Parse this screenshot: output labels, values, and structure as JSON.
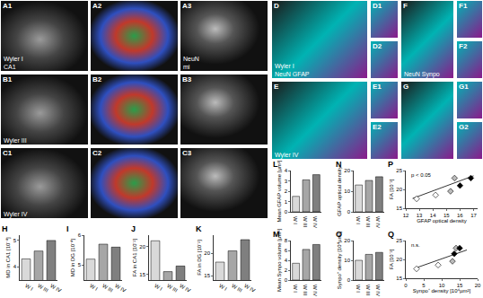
{
  "images": [
    {
      "label": "A1",
      "texts": [
        "Wyler I",
        "CA1"
      ]
    },
    {
      "label": "A2",
      "texts": []
    },
    {
      "label": "A3",
      "texts": [
        "NeuN",
        "mi"
      ]
    },
    {
      "label": "B1",
      "texts": [
        "Wyler III"
      ]
    },
    {
      "label": "B2",
      "texts": []
    },
    {
      "label": "B3",
      "texts": []
    },
    {
      "label": "C1",
      "texts": [
        "Wyler IV"
      ]
    },
    {
      "label": "C2",
      "texts": []
    },
    {
      "label": "C3",
      "texts": []
    },
    {
      "label": "D",
      "texts": [
        "Wyler I",
        "NeuN GFAP"
      ]
    },
    {
      "label": "D1",
      "texts": []
    },
    {
      "label": "D2",
      "texts": []
    },
    {
      "label": "E",
      "texts": [
        "Wyler IV"
      ]
    },
    {
      "label": "E1",
      "texts": []
    },
    {
      "label": "E2",
      "texts": []
    },
    {
      "label": "F",
      "texts": [
        "NeuN Synpo"
      ]
    },
    {
      "label": "F1",
      "texts": []
    },
    {
      "label": "F2",
      "texts": []
    },
    {
      "label": "G",
      "texts": []
    },
    {
      "label": "G1",
      "texts": []
    },
    {
      "label": "G2",
      "texts": []
    }
  ],
  "chart_data": [
    {
      "panel": "H",
      "type": "bar",
      "y_label": "MD in CA1 [10⁻⁴]",
      "categories": [
        "W I",
        "W III",
        "W IV"
      ],
      "values": [
        4.3,
        4.6,
        5.0
      ],
      "colors": [
        "#d9d9d9",
        "#a6a6a6",
        "#7f7f7f"
      ],
      "ylim": [
        3.5,
        5.2
      ],
      "yticks": [
        4,
        5
      ]
    },
    {
      "panel": "I",
      "type": "bar",
      "y_label": "MD in DG [10⁻⁴]",
      "categories": [
        "W I",
        "W III",
        "W IV"
      ],
      "values": [
        5.2,
        5.7,
        5.6
      ],
      "colors": [
        "#d9d9d9",
        "#a6a6a6",
        "#7f7f7f"
      ],
      "ylim": [
        4.5,
        6
      ],
      "yticks": [
        5,
        6
      ]
    },
    {
      "panel": "J",
      "type": "bar",
      "y_label": "FA in CA1 [10⁻²]",
      "categories": [
        "W I",
        "W III",
        "W IV"
      ],
      "values": [
        21,
        15.5,
        16.5
      ],
      "colors": [
        "#d9d9d9",
        "#a6a6a6",
        "#7f7f7f"
      ],
      "ylim": [
        14,
        22
      ],
      "yticks": [
        15,
        20
      ]
    },
    {
      "panel": "K",
      "type": "bar",
      "y_label": "FA in DG [10⁻²]",
      "categories": [
        "W I",
        "W III",
        "W IV"
      ],
      "values": [
        18,
        20.5,
        23
      ],
      "colors": [
        "#d9d9d9",
        "#a6a6a6",
        "#7f7f7f"
      ],
      "ylim": [
        14,
        24
      ],
      "yticks": [
        15,
        20
      ]
    },
    {
      "panel": "L",
      "type": "bar",
      "y_label": "Mean GFAP volume [µm³]",
      "categories": [
        "W I",
        "W III",
        "W IV"
      ],
      "values": [
        1.5,
        3.1,
        3.6
      ],
      "colors": [
        "#d9d9d9",
        "#a6a6a6",
        "#7f7f7f"
      ],
      "ylim": [
        0,
        4
      ],
      "yticks": [
        0,
        1,
        2,
        3,
        4
      ]
    },
    {
      "panel": "M",
      "type": "bar",
      "y_label": "Mean Synpo volume [µm³]",
      "categories": [
        "W I",
        "W III",
        "W IV"
      ],
      "values": [
        3.4,
        6.2,
        7.2
      ],
      "colors": [
        "#d9d9d9",
        "#a6a6a6",
        "#7f7f7f"
      ],
      "ylim": [
        0,
        8
      ],
      "yticks": [
        0,
        2,
        4,
        6,
        8
      ]
    },
    {
      "panel": "N",
      "type": "bar",
      "y_label": "GFAP optical density",
      "categories": [
        "W I",
        "W III",
        "W IV"
      ],
      "values": [
        13,
        15.2,
        17
      ],
      "colors": [
        "#d9d9d9",
        "#a6a6a6",
        "#7f7f7f"
      ],
      "ylim": [
        0,
        20
      ],
      "yticks": [
        0,
        10,
        20
      ]
    },
    {
      "panel": "O",
      "type": "bar",
      "y_label": "Synpo⁺ density [10⁴µm²]",
      "categories": [
        "W I",
        "W III",
        "W IV"
      ],
      "values": [
        10,
        13,
        14
      ],
      "colors": [
        "#d9d9d9",
        "#a6a6a6",
        "#7f7f7f"
      ],
      "ylim": [
        0,
        20
      ],
      "yticks": [
        0,
        10,
        20
      ]
    },
    {
      "panel": "P",
      "type": "scatter",
      "marker": "diamond",
      "x_label": "GFAP optical density",
      "y_label": "FA [10⁻²]",
      "x": [
        12.8,
        14.2,
        15.3,
        15.6,
        16.0,
        16.8
      ],
      "y": [
        17.5,
        18.5,
        19.5,
        23,
        21,
        23
      ],
      "colors": [
        "#ffffff",
        "#ffffff",
        "#bbbbbb",
        "#bbbbbb",
        "#000000",
        "#000000"
      ],
      "fit_line": {
        "x": [
          12.5,
          17
        ],
        "y": [
          17.6,
          23.6
        ]
      },
      "annotations": [
        "p < 0.05"
      ],
      "xlim": [
        12,
        17.3
      ],
      "xticks": [
        12,
        13,
        14,
        15,
        16,
        17
      ],
      "ylim": [
        15,
        25
      ],
      "yticks": [
        15,
        20,
        25
      ]
    },
    {
      "panel": "Q",
      "type": "scatter",
      "marker": "diamond",
      "x_label": "Synpo⁺ density [10⁴µm²]",
      "y_label": "FA [10⁻²]",
      "x": [
        3,
        9,
        13,
        14,
        13.5,
        15
      ],
      "y": [
        17.5,
        18.5,
        19.5,
        23,
        21.5,
        23
      ],
      "colors": [
        "#ffffff",
        "#ffffff",
        "#bbbbbb",
        "#bbbbbb",
        "#000000",
        "#000000"
      ],
      "fit_line": {
        "x": [
          3,
          17
        ],
        "y": [
          17.8,
          22.5
        ]
      },
      "annotations": [
        "n.s."
      ],
      "xlim": [
        0,
        20
      ],
      "xticks": [
        0,
        5,
        10,
        15,
        20
      ],
      "ylim": [
        15,
        25
      ],
      "yticks": [
        15,
        20,
        25
      ]
    }
  ]
}
